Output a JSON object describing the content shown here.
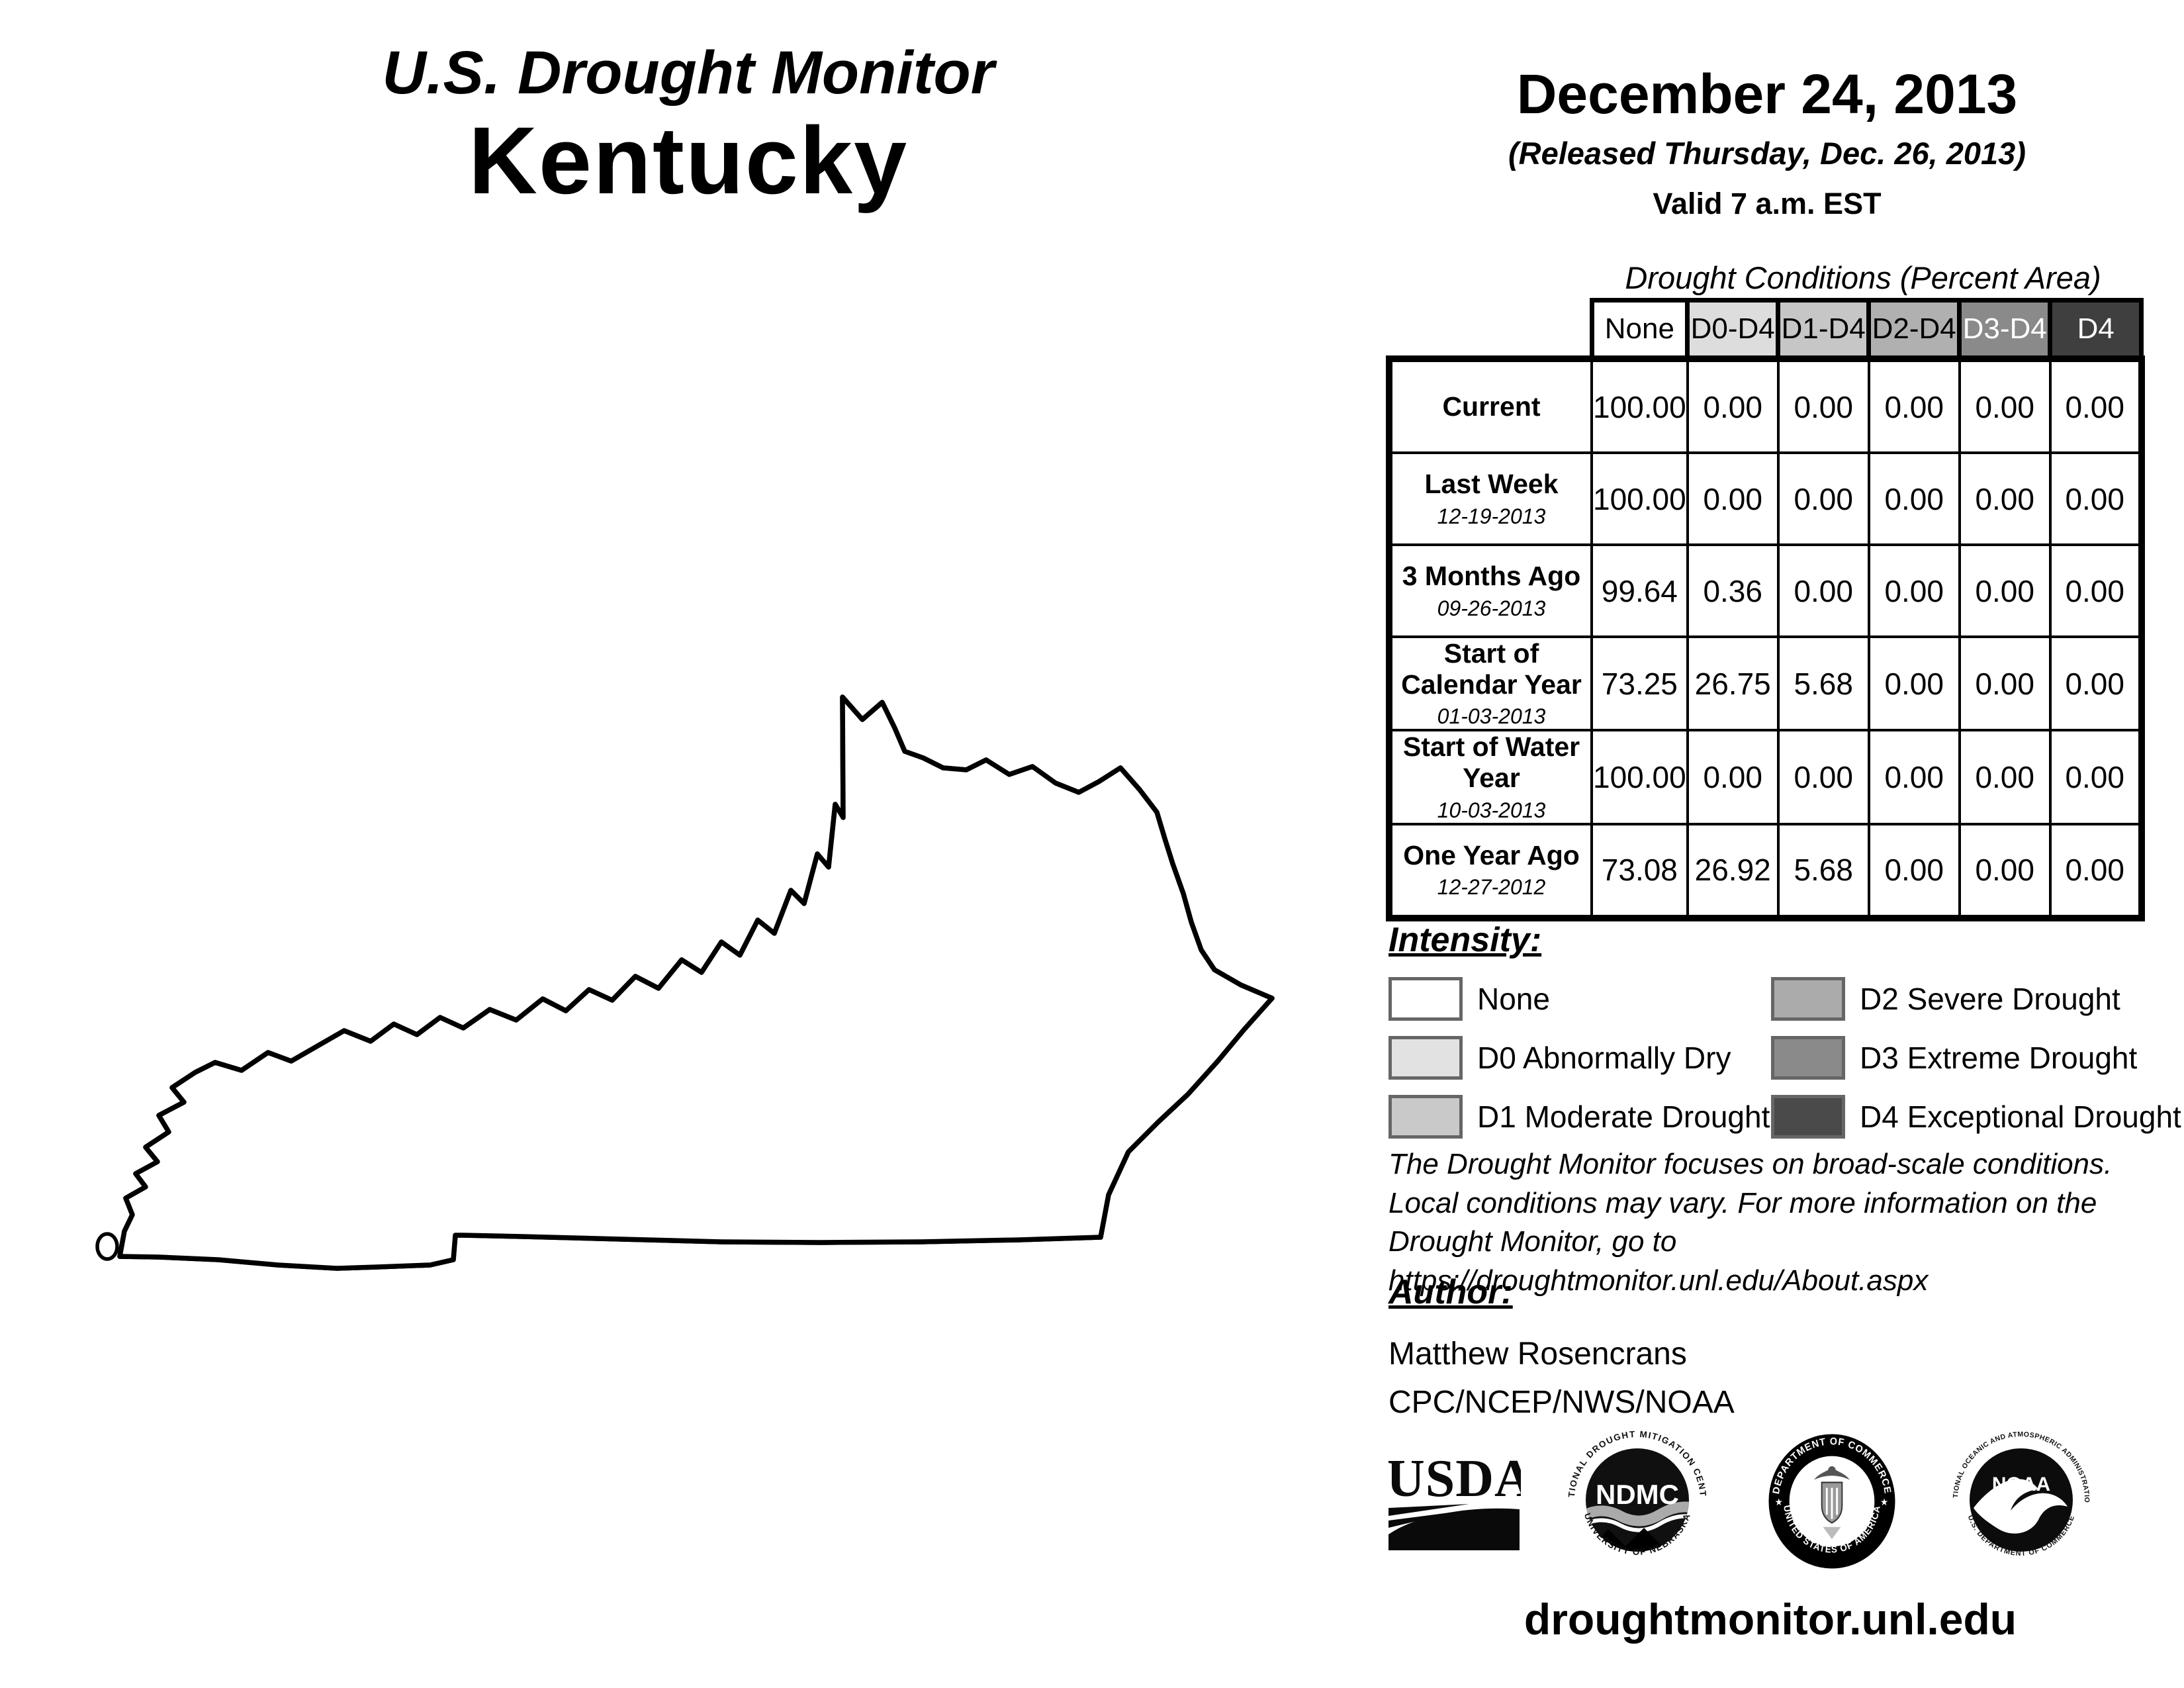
{
  "title": {
    "line1": "U.S. Drought Monitor",
    "line2": "Kentucky"
  },
  "date_block": {
    "date": "December 24, 2013",
    "released": "(Released Thursday, Dec. 26, 2013)",
    "valid": "Valid 7 a.m. EST"
  },
  "table": {
    "caption": "Drought Conditions (Percent Area)",
    "header_bg": [
      "#ffffff",
      "#dddddd",
      "#c6c6c6",
      "#b0b0b0",
      "#8a8a8a",
      "#3f3f3f"
    ],
    "header_fg": [
      "#000000",
      "#000000",
      "#000000",
      "#000000",
      "#ffffff",
      "#ffffff"
    ]
  },
  "chart_data": {
    "type": "table",
    "title": "Drought Conditions (Percent Area)",
    "columns": [
      "None",
      "D0-D4",
      "D1-D4",
      "D2-D4",
      "D3-D4",
      "D4"
    ],
    "rows": [
      {
        "label": "Current",
        "date": "",
        "values": [
          "100.00",
          "0.00",
          "0.00",
          "0.00",
          "0.00",
          "0.00"
        ]
      },
      {
        "label": "Last Week",
        "date": "12-19-2013",
        "values": [
          "100.00",
          "0.00",
          "0.00",
          "0.00",
          "0.00",
          "0.00"
        ]
      },
      {
        "label": "3 Months Ago",
        "date": "09-26-2013",
        "values": [
          "99.64",
          "0.36",
          "0.00",
          "0.00",
          "0.00",
          "0.00"
        ]
      },
      {
        "label": "Start of Calendar Year",
        "date": "01-03-2013",
        "values": [
          "73.25",
          "26.75",
          "5.68",
          "0.00",
          "0.00",
          "0.00"
        ]
      },
      {
        "label": "Start of Water Year",
        "date": "10-03-2013",
        "values": [
          "100.00",
          "0.00",
          "0.00",
          "0.00",
          "0.00",
          "0.00"
        ]
      },
      {
        "label": "One Year Ago",
        "date": "12-27-2012",
        "values": [
          "73.08",
          "26.92",
          "5.68",
          "0.00",
          "0.00",
          "0.00"
        ]
      }
    ]
  },
  "legend": {
    "heading": "Intensity:",
    "items": [
      {
        "label": "None",
        "color": "#ffffff"
      },
      {
        "label": "D0 Abnormally Dry",
        "color": "#e2e2e2"
      },
      {
        "label": "D1 Moderate Drought",
        "color": "#c9c9c9"
      },
      {
        "label": "D2 Severe Drought",
        "color": "#ababab"
      },
      {
        "label": "D3 Extreme Drought",
        "color": "#8a8a8a"
      },
      {
        "label": "D4 Exceptional Drought",
        "color": "#4a4a4a"
      }
    ]
  },
  "disclaimer": {
    "lines": [
      "The Drought Monitor focuses on broad-scale conditions.",
      "Local conditions may vary. For more information on the",
      "Drought Monitor, go to https://droughtmonitor.unl.edu/About.aspx"
    ]
  },
  "author": {
    "heading": "Author:",
    "name": "Matthew Rosencrans",
    "org": "CPC/NCEP/NWS/NOAA"
  },
  "logos": {
    "usda": {
      "text": "USDA"
    },
    "ndmc": {
      "acronym": "NDMC",
      "arc_top": "NATIONAL DROUGHT MITIGATION CENTER",
      "arc_bottom": "UNIVERSITY OF NEBRASKA"
    },
    "commerce": {
      "arc_top": "DEPARTMENT OF COMMERCE",
      "arc_bottom": "UNITED STATES OF AMERICA",
      "star": "★"
    },
    "noaa": {
      "acronym": "NOAA",
      "arc_top": "NATIONAL OCEANIC AND ATMOSPHERIC ADMINISTRATION",
      "arc_bottom": "U.S. DEPARTMENT OF COMMERCE"
    }
  },
  "footer": {
    "url": "droughtmonitor.unl.edu"
  },
  "map": {
    "state": "Kentucky",
    "none_fill": "#ffffff",
    "border_color": "#000000"
  }
}
